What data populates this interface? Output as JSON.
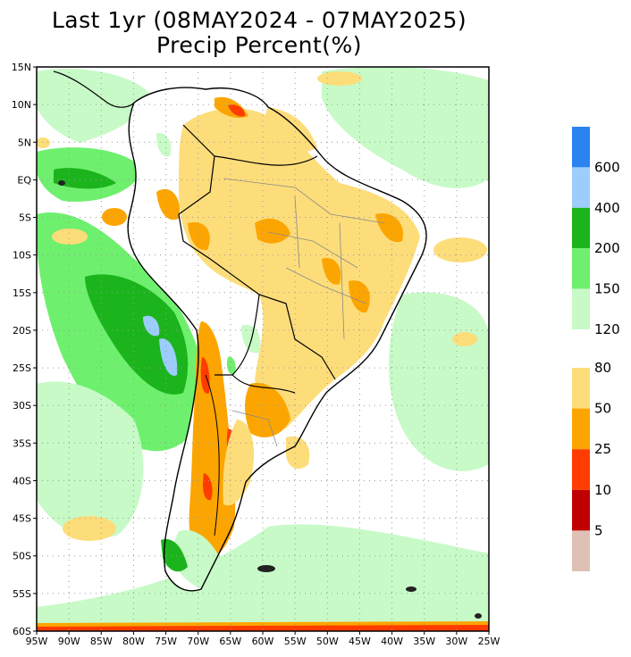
{
  "title": {
    "line1": "Last 1yr (08MAY2024 - 07MAY2025)",
    "line2": "Precip Percent(%)"
  },
  "map": {
    "region": "South America",
    "lat_ticks": [
      "15N",
      "10N",
      "5N",
      "EQ",
      "5S",
      "10S",
      "15S",
      "20S",
      "25S",
      "30S",
      "35S",
      "40S",
      "45S",
      "50S",
      "55S",
      "60S"
    ],
    "lon_ticks": [
      "95W",
      "90W",
      "85W",
      "80W",
      "75W",
      "70W",
      "65W",
      "60W",
      "55W",
      "50W",
      "45W",
      "40W",
      "35W",
      "30W",
      "25W"
    ],
    "lat_range": [
      15,
      -60
    ],
    "lon_range": [
      -95,
      -25
    ],
    "grid": "dotted"
  },
  "legend": {
    "wet": [
      {
        "label": "600",
        "color": "#2b83f0"
      },
      {
        "label": "400",
        "color": "#9ccdfd"
      },
      {
        "label": "200",
        "color": "#1cb41c"
      },
      {
        "label": "150",
        "color": "#6ef06e"
      },
      {
        "label": "120",
        "color": "#c7fac7"
      }
    ],
    "dry": [
      {
        "label": "80",
        "color": "#fddd7a"
      },
      {
        "label": "50",
        "color": "#fca500"
      },
      {
        "label": "25",
        "color": "#ff3c00"
      },
      {
        "label": "10",
        "color": "#c00000"
      },
      {
        "label": "5",
        "color": "#dfc0b4"
      }
    ]
  }
}
